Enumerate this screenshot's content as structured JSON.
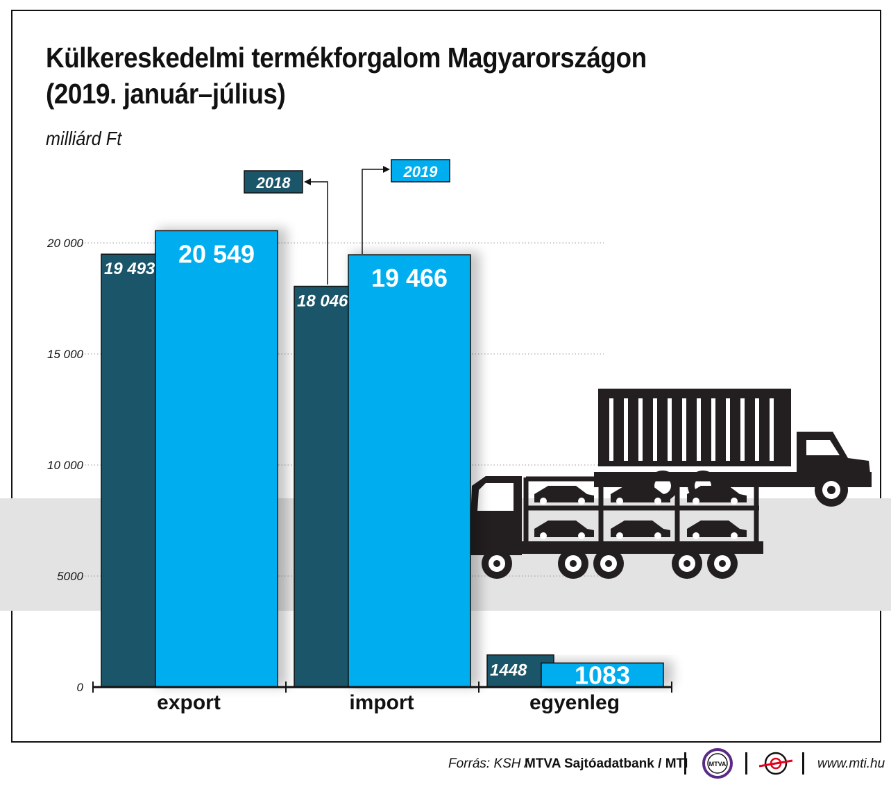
{
  "title_line1": "Külkereskedelmi termékforgalom Magyarországon",
  "title_line2": "(2019. január–július)",
  "unit": "milliárd Ft",
  "chart_data": {
    "type": "bar",
    "title": "Külkereskedelmi termékforgalom Magyarországon (2019. január–július)",
    "ylabel": "milliárd Ft",
    "ylim": [
      0,
      20000
    ],
    "yticks": [
      0,
      5000,
      10000,
      15000,
      20000
    ],
    "ytick_labels": [
      "0",
      "5000",
      "10 000",
      "15 000",
      "20 000"
    ],
    "categories": [
      "export",
      "import",
      "egyenleg"
    ],
    "series": [
      {
        "name": "2018",
        "values": [
          19493,
          18046,
          1448
        ],
        "labels": [
          "19 493",
          "18 046",
          "1448"
        ]
      },
      {
        "name": "2019",
        "values": [
          20549,
          19466,
          1083
        ],
        "labels": [
          "20 549",
          "19 466",
          "1083"
        ]
      }
    ],
    "grid": "dotted horizontal",
    "legend": "top-center callouts"
  },
  "colors": {
    "s2018": "#1b5569",
    "s2019": "#00aeef",
    "band": "#e3e3e3",
    "ink": "#111111"
  },
  "illustration": {
    "name": "car-transporter-truck-and-container-truck"
  },
  "footer": {
    "source_prefix": "Forrás: KSH / ",
    "source_bold": "MTVA Sajtóadatbank / MTI",
    "logo1_text": "MTVA",
    "url": "www.mti.hu"
  }
}
